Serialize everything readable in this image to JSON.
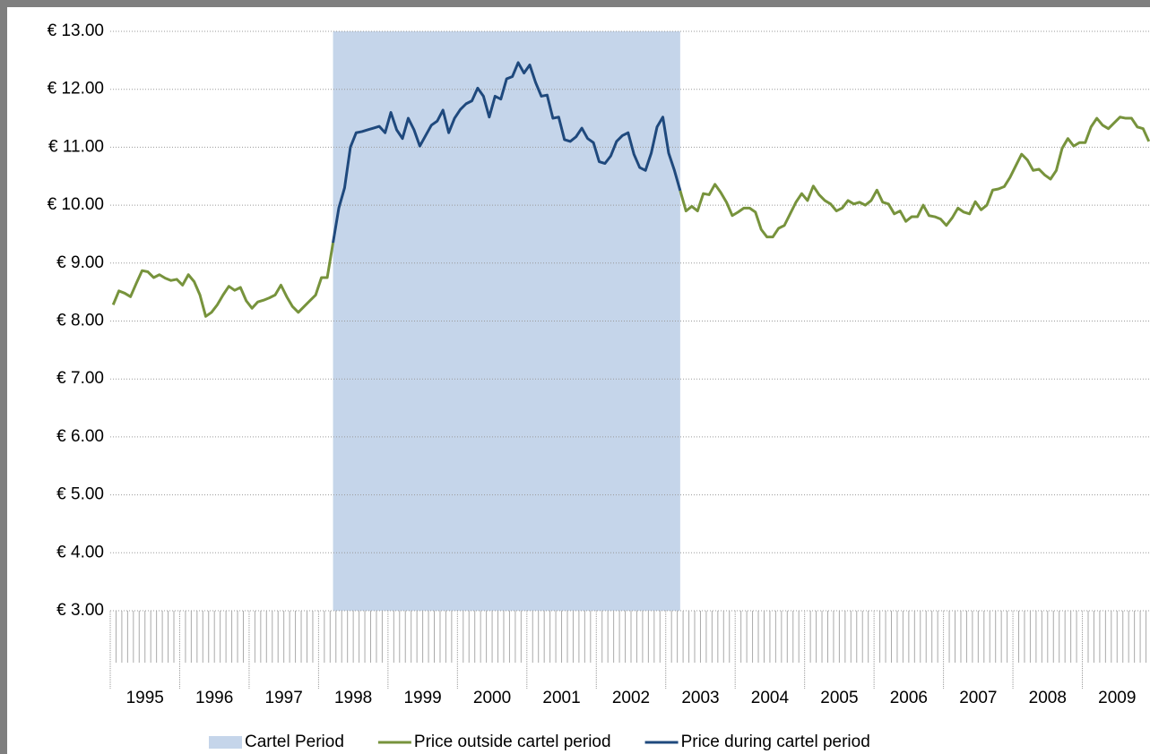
{
  "chart_data": {
    "type": "line",
    "categories": [
      "1995",
      null,
      null,
      null,
      null,
      null,
      null,
      null,
      null,
      null,
      null,
      null,
      "1996",
      null,
      null,
      null,
      null,
      null,
      null,
      null,
      null,
      null,
      null,
      null,
      "1997",
      null,
      null,
      null,
      null,
      null,
      null,
      null,
      null,
      null,
      null,
      null,
      "1998",
      null,
      null,
      null,
      null,
      null,
      null,
      null,
      null,
      null,
      null,
      null,
      "1999",
      null,
      null,
      null,
      null,
      null,
      null,
      null,
      null,
      null,
      null,
      null,
      "2000",
      null,
      null,
      null,
      null,
      null,
      null,
      null,
      null,
      null,
      null,
      null,
      "2001",
      null,
      null,
      null,
      null,
      null,
      null,
      null,
      null,
      null,
      null,
      null,
      "2002",
      null,
      null,
      null,
      null,
      null,
      null,
      null,
      null,
      null,
      null,
      null,
      "2003",
      null,
      null,
      null,
      null,
      null,
      null,
      null,
      null,
      null,
      null,
      null,
      "2004",
      null,
      null,
      null,
      null,
      null,
      null,
      null,
      null,
      null,
      null,
      null,
      "2005",
      null,
      null,
      null,
      null,
      null,
      null,
      null,
      null,
      null,
      null,
      null,
      "2006",
      null,
      null,
      null,
      null,
      null,
      null,
      null,
      null,
      null,
      null,
      null,
      "2007",
      null,
      null,
      null,
      null,
      null,
      null,
      null,
      null,
      null,
      null,
      null,
      "2008",
      null,
      null,
      null,
      null,
      null,
      null,
      null,
      null,
      null,
      null,
      null,
      "2009",
      null,
      null,
      null,
      null,
      null,
      null,
      null,
      null,
      null,
      null,
      null
    ],
    "series": [
      {
        "name": "Cartel Period",
        "kind": "area",
        "color": "#c5d5ea",
        "values": [
          null,
          null,
          null,
          null,
          null,
          null,
          null,
          null,
          null,
          null,
          null,
          null,
          null,
          null,
          null,
          null,
          null,
          null,
          null,
          null,
          null,
          null,
          null,
          null,
          null,
          null,
          null,
          null,
          null,
          null,
          null,
          null,
          null,
          null,
          null,
          null,
          null,
          null,
          13,
          13,
          13,
          13,
          13,
          13,
          13,
          13,
          13,
          13,
          13,
          13,
          13,
          13,
          13,
          13,
          13,
          13,
          13,
          13,
          13,
          13,
          13,
          13,
          13,
          13,
          13,
          13,
          13,
          13,
          13,
          13,
          13,
          13,
          13,
          13,
          13,
          13,
          13,
          13,
          13,
          13,
          13,
          13,
          13,
          13,
          13,
          13,
          13,
          13,
          13,
          13,
          13,
          13,
          13,
          13,
          13,
          13,
          13,
          13,
          13,
          null,
          null,
          null,
          null,
          null,
          null,
          null,
          null,
          null,
          null,
          null,
          null,
          null,
          null,
          null,
          null,
          null,
          null,
          null,
          null,
          null,
          null,
          null,
          null,
          null,
          null,
          null,
          null,
          null,
          null,
          null,
          null,
          null,
          null,
          null,
          null,
          null,
          null,
          null,
          null,
          null,
          null,
          null,
          null,
          null,
          null,
          null,
          null,
          null,
          null,
          null,
          null,
          null,
          null,
          null,
          null,
          null,
          null,
          null,
          null,
          null,
          null,
          null,
          null,
          null,
          null,
          null,
          null,
          null,
          null,
          null,
          null,
          null,
          null,
          null,
          null,
          null,
          null,
          null,
          null,
          null
        ]
      },
      {
        "name": "Price outside cartel period",
        "kind": "line",
        "color": "#77933c",
        "values": [
          8.28,
          8.52,
          8.48,
          8.42,
          8.65,
          8.87,
          8.85,
          8.75,
          8.8,
          8.74,
          8.7,
          8.72,
          8.62,
          8.8,
          8.68,
          8.45,
          8.08,
          8.15,
          8.28,
          8.45,
          8.6,
          8.53,
          8.58,
          8.35,
          8.22,
          8.33,
          8.36,
          8.4,
          8.45,
          8.62,
          8.42,
          8.25,
          8.15,
          8.25,
          8.35,
          8.45,
          8.75,
          8.75,
          9.35,
          null,
          null,
          null,
          null,
          null,
          null,
          null,
          null,
          null,
          null,
          null,
          null,
          null,
          null,
          null,
          null,
          null,
          null,
          null,
          null,
          null,
          null,
          null,
          null,
          null,
          null,
          null,
          null,
          null,
          null,
          null,
          null,
          null,
          null,
          null,
          null,
          null,
          null,
          null,
          null,
          null,
          null,
          null,
          null,
          null,
          null,
          null,
          null,
          null,
          null,
          null,
          null,
          null,
          null,
          null,
          null,
          null,
          null,
          null,
          10.25,
          9.9,
          9.98,
          9.9,
          10.2,
          10.18,
          10.36,
          10.22,
          10.05,
          9.82,
          9.88,
          9.95,
          9.95,
          9.88,
          9.58,
          9.45,
          9.45,
          9.6,
          9.65,
          9.85,
          10.05,
          10.2,
          10.08,
          10.33,
          10.18,
          10.08,
          10.02,
          9.9,
          9.95,
          10.08,
          10.02,
          10.05,
          10.0,
          10.08,
          10.26,
          10.05,
          10.02,
          9.85,
          9.9,
          9.72,
          9.8,
          9.8,
          10.0,
          9.82,
          9.8,
          9.76,
          9.65,
          9.78,
          9.95,
          9.88,
          9.85,
          10.06,
          9.92,
          10.0,
          10.26,
          10.28,
          10.32,
          10.48,
          10.68,
          10.88,
          10.78,
          10.6,
          10.62,
          10.52,
          10.45,
          10.6,
          10.98,
          11.15,
          11.02,
          11.08,
          11.08,
          11.35,
          11.5,
          11.38,
          11.32,
          11.42,
          11.52,
          11.5,
          11.5,
          11.35,
          11.32,
          11.1
        ]
      },
      {
        "name": "Price during cartel period",
        "kind": "line",
        "color": "#1f497d",
        "values": [
          null,
          null,
          null,
          null,
          null,
          null,
          null,
          null,
          null,
          null,
          null,
          null,
          null,
          null,
          null,
          null,
          null,
          null,
          null,
          null,
          null,
          null,
          null,
          null,
          null,
          null,
          null,
          null,
          null,
          null,
          null,
          null,
          null,
          null,
          null,
          null,
          null,
          null,
          9.35,
          9.95,
          10.3,
          11.0,
          11.25,
          11.27,
          11.3,
          11.33,
          11.36,
          11.25,
          11.6,
          11.3,
          11.15,
          11.5,
          11.3,
          11.02,
          11.2,
          11.38,
          11.45,
          11.64,
          11.25,
          11.5,
          11.65,
          11.75,
          11.8,
          12.02,
          11.88,
          11.52,
          11.88,
          11.83,
          12.18,
          12.22,
          12.46,
          12.28,
          12.42,
          12.12,
          11.88,
          11.9,
          11.5,
          11.52,
          11.13,
          11.1,
          11.18,
          11.33,
          11.15,
          11.08,
          10.75,
          10.72,
          10.85,
          11.1,
          11.2,
          11.25,
          10.88,
          10.65,
          10.6,
          10.9,
          11.35,
          11.52,
          10.9,
          10.6,
          10.25,
          null,
          null,
          null,
          null,
          null,
          null,
          null,
          null,
          null,
          null,
          null,
          null,
          null,
          null,
          null,
          null,
          null,
          null,
          null,
          null,
          null,
          null,
          null,
          null,
          null,
          null,
          null,
          null,
          null,
          null,
          null,
          null,
          null,
          null,
          null,
          null,
          null,
          null,
          null,
          null,
          null,
          null,
          null,
          null,
          null,
          null,
          null,
          null,
          null,
          null,
          null,
          null,
          null,
          null,
          null,
          null,
          null,
          null,
          null,
          null,
          null,
          null,
          null,
          null,
          null,
          null,
          null,
          null,
          null,
          null,
          null,
          null,
          null,
          null,
          null,
          null,
          null,
          null,
          null,
          null,
          null
        ]
      }
    ],
    "ylim": [
      3,
      13
    ],
    "yticks": [
      {
        "value": 3,
        "label": "€ 3.00"
      },
      {
        "value": 4,
        "label": "€ 4.00"
      },
      {
        "value": 5,
        "label": "€ 5.00"
      },
      {
        "value": 6,
        "label": "€ 6.00"
      },
      {
        "value": 7,
        "label": "€ 7.00"
      },
      {
        "value": 8,
        "label": "€ 8.00"
      },
      {
        "value": 9,
        "label": "€ 9.00"
      },
      {
        "value": 10,
        "label": "€ 10.00"
      },
      {
        "value": 11,
        "label": "€ 11.00"
      },
      {
        "value": 12,
        "label": "€ 12.00"
      },
      {
        "value": 13,
        "label": "€ 13.00"
      }
    ],
    "grid": true,
    "legend": "bottom"
  }
}
